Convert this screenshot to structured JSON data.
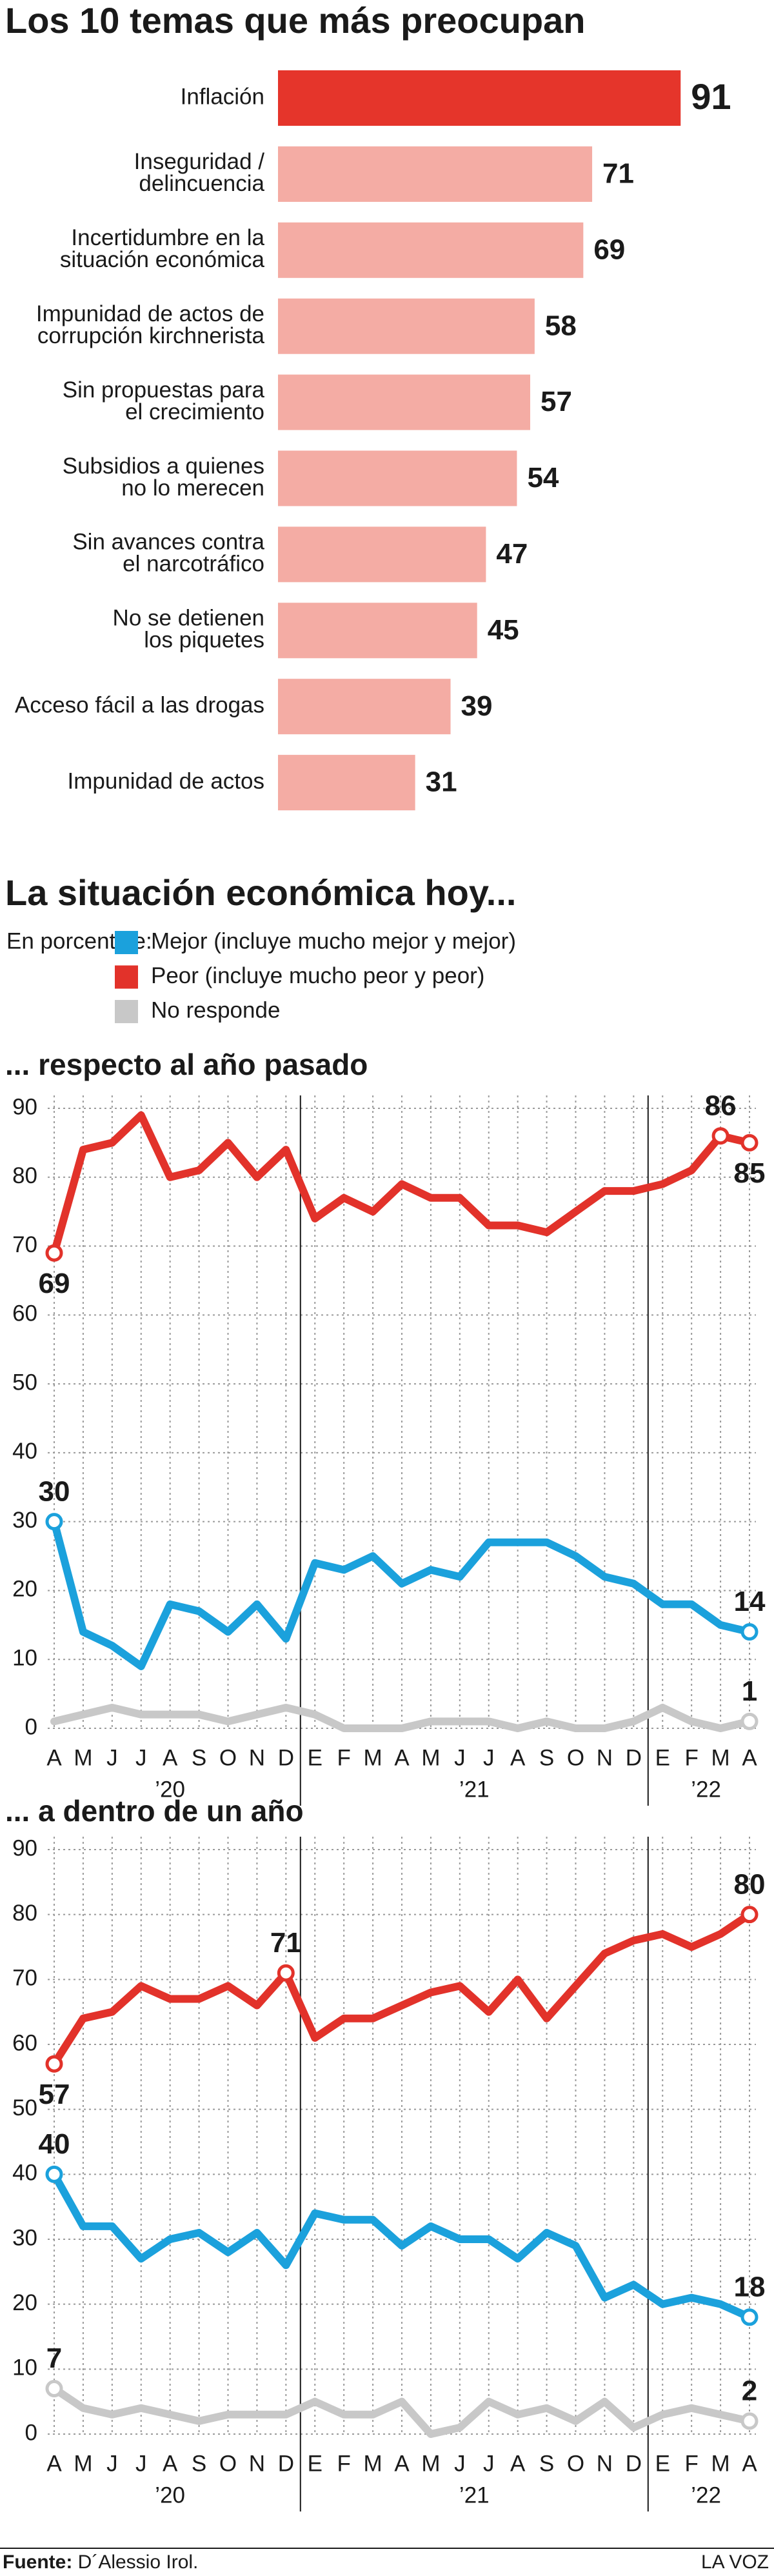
{
  "section_title": "La situación económica hoy...",
  "legend_title": "En porcentaje:",
  "source": {
    "label": "Fuente:",
    "text": "D´Alessio Irol."
  },
  "brand": "LA VOZ",
  "chart_data": [
    {
      "type": "hbar",
      "title": "Los 10 temas que más preocupan",
      "categories": [
        [
          "Inflación"
        ],
        [
          "Inseguridad /",
          "delincuencia"
        ],
        [
          "Incertidumbre en la",
          "situación económica"
        ],
        [
          "Impunidad de actos de",
          "corrupción kirchnerista"
        ],
        [
          "Sin propuestas para",
          "el crecimiento"
        ],
        [
          "Subsidios a quienes",
          "no lo merecen"
        ],
        [
          "Sin avances contra",
          "el narcotráfico"
        ],
        [
          "No se detienen",
          "los piquetes"
        ],
        [
          "Acceso fácil a las drogas"
        ],
        [
          "Impunidad de actos"
        ]
      ],
      "values": [
        91,
        71,
        69,
        58,
        57,
        54,
        47,
        45,
        39,
        31
      ],
      "colors": [
        "#e5352b",
        "#f4aca4",
        "#f4aca4",
        "#f4aca4",
        "#f4aca4",
        "#f4aca4",
        "#f4aca4",
        "#f4aca4",
        "#f4aca4",
        "#f4aca4"
      ]
    },
    {
      "type": "line",
      "title": "... respecto al año pasado",
      "categories": [
        "A",
        "M",
        "J",
        "J",
        "A",
        "S",
        "O",
        "N",
        "D",
        "E",
        "F",
        "M",
        "A",
        "M",
        "J",
        "J",
        "A",
        "S",
        "O",
        "N",
        "D",
        "E",
        "F",
        "M",
        "A"
      ],
      "x_groups": [
        "’20",
        "’21",
        "’22"
      ],
      "ylim": [
        0,
        90
      ],
      "yticks": [
        0,
        10,
        20,
        30,
        40,
        50,
        60,
        70,
        80,
        90
      ],
      "grid": true,
      "series": [
        {
          "name": "Mejor (incluye mucho mejor y mejor)",
          "color": "#1ba1dc",
          "values": [
            30,
            14,
            12,
            9,
            18,
            17,
            14,
            18,
            13,
            24,
            23,
            25,
            21,
            23,
            22,
            27,
            27,
            27,
            25,
            22,
            21,
            18,
            18,
            15,
            14
          ],
          "value_labels": [
            "30",
            null,
            null,
            null,
            null,
            null,
            null,
            null,
            null,
            null,
            null,
            null,
            null,
            null,
            null,
            null,
            null,
            null,
            null,
            null,
            null,
            null,
            null,
            null,
            "14"
          ]
        },
        {
          "name": "Peor (incluye mucho peor y peor)",
          "color": "#e2322a",
          "values": [
            69,
            84,
            85,
            89,
            80,
            81,
            85,
            80,
            84,
            74,
            77,
            75,
            79,
            77,
            77,
            73,
            73,
            72,
            75,
            78,
            78,
            79,
            81,
            86,
            85
          ],
          "value_labels": [
            "69",
            null,
            null,
            null,
            null,
            null,
            null,
            null,
            null,
            null,
            null,
            null,
            null,
            null,
            null,
            null,
            null,
            null,
            null,
            null,
            null,
            null,
            null,
            "86",
            "85"
          ]
        },
        {
          "name": "No responde",
          "color": "#c8c8c8",
          "values": [
            1,
            2,
            3,
            2,
            2,
            2,
            1,
            2,
            3,
            2,
            0,
            0,
            0,
            1,
            1,
            1,
            0,
            1,
            0,
            0,
            1,
            3,
            1,
            0,
            1
          ],
          "value_labels": [
            null,
            null,
            null,
            null,
            null,
            null,
            null,
            null,
            null,
            null,
            null,
            null,
            null,
            null,
            null,
            null,
            null,
            null,
            null,
            null,
            null,
            null,
            null,
            null,
            "1"
          ]
        }
      ]
    },
    {
      "type": "line",
      "title": "... a dentro de un año",
      "categories": [
        "A",
        "M",
        "J",
        "J",
        "A",
        "S",
        "O",
        "N",
        "D",
        "E",
        "F",
        "M",
        "A",
        "M",
        "J",
        "J",
        "A",
        "S",
        "O",
        "N",
        "D",
        "E",
        "F",
        "M",
        "A"
      ],
      "x_groups": [
        "’20",
        "’21",
        "’22"
      ],
      "ylim": [
        0,
        90
      ],
      "yticks": [
        0,
        10,
        20,
        30,
        40,
        50,
        60,
        70,
        80,
        90
      ],
      "grid": true,
      "series": [
        {
          "color": "#1ba1dc",
          "values": [
            40,
            32,
            32,
            27,
            30,
            31,
            28,
            31,
            26,
            34,
            33,
            33,
            29,
            32,
            30,
            30,
            27,
            31,
            29,
            21,
            23,
            20,
            21,
            20,
            18
          ],
          "value_labels": [
            "40",
            null,
            null,
            null,
            null,
            null,
            null,
            null,
            null,
            null,
            null,
            null,
            null,
            null,
            null,
            null,
            null,
            null,
            null,
            null,
            null,
            null,
            null,
            null,
            "18"
          ]
        },
        {
          "color": "#e2322a",
          "values": [
            57,
            64,
            65,
            69,
            67,
            67,
            69,
            66,
            71,
            61,
            64,
            64,
            66,
            68,
            69,
            65,
            70,
            64,
            69,
            74,
            76,
            77,
            75,
            77,
            80
          ],
          "value_labels": [
            "57",
            null,
            null,
            null,
            null,
            null,
            null,
            null,
            "71",
            null,
            null,
            null,
            null,
            null,
            null,
            null,
            null,
            null,
            null,
            null,
            null,
            null,
            null,
            null,
            "80"
          ]
        },
        {
          "color": "#c8c8c8",
          "values": [
            7,
            4,
            3,
            4,
            3,
            2,
            3,
            3,
            3,
            5,
            3,
            3,
            5,
            0,
            1,
            5,
            3,
            4,
            2,
            5,
            1,
            3,
            4,
            3,
            2
          ],
          "value_labels": [
            "7",
            null,
            null,
            null,
            null,
            null,
            null,
            null,
            null,
            null,
            null,
            null,
            null,
            null,
            null,
            null,
            null,
            null,
            null,
            null,
            null,
            null,
            null,
            null,
            "2"
          ]
        }
      ]
    }
  ]
}
